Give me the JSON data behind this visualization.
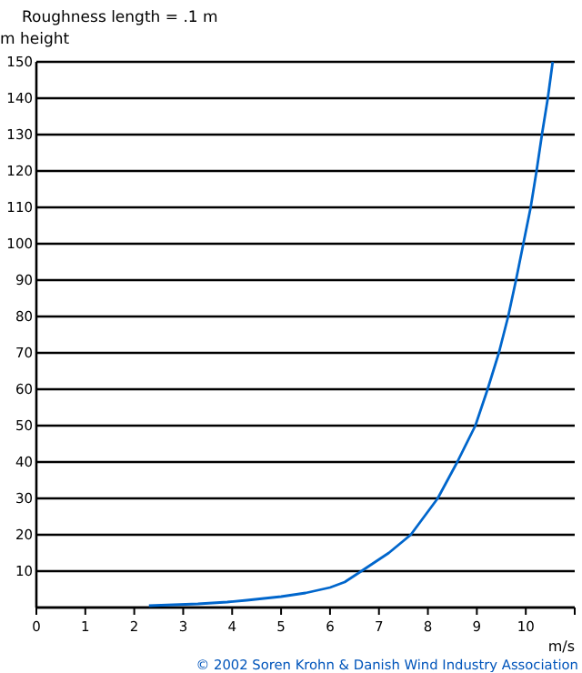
{
  "chart_data": {
    "type": "line",
    "title": "Roughness length = .1 m",
    "ylabel": "m height",
    "xlabel": "m/s",
    "annotations": [
      "© 2002 Soren Krohn & Danish Wind Industry Association"
    ],
    "x": [
      2.3,
      3.3,
      3.9,
      4.3,
      5,
      5.5,
      6,
      6.3,
      6.64,
      7.2,
      7.65,
      8.2,
      8.6,
      8.97,
      9.22,
      9.45,
      9.64,
      9.8,
      9.95,
      10.1,
      10.22,
      10.33,
      10.45,
      10.55
    ],
    "series": [
      {
        "color": "#0066cc",
        "values": [
          0.5,
          1,
          1.5,
          2,
          3,
          4,
          5.5,
          7,
          10,
          15,
          20,
          30,
          40,
          50,
          60,
          70,
          80,
          90,
          100,
          110,
          120,
          130,
          140,
          150
        ]
      }
    ],
    "xlim": [
      0,
      11
    ],
    "xticks": [
      0,
      1,
      2,
      3,
      4,
      5,
      6,
      7,
      8,
      9,
      10,
      {
        "value": 11,
        "label": null
      }
    ],
    "ylim": [
      0,
      150
    ],
    "yticks": [
      {
        "value": 0,
        "label": null
      },
      10,
      20,
      30,
      40,
      50,
      60,
      70,
      80,
      90,
      100,
      110,
      120,
      130,
      140,
      150
    ],
    "grid": "y",
    "marker": "none",
    "line_style": "solid"
  }
}
